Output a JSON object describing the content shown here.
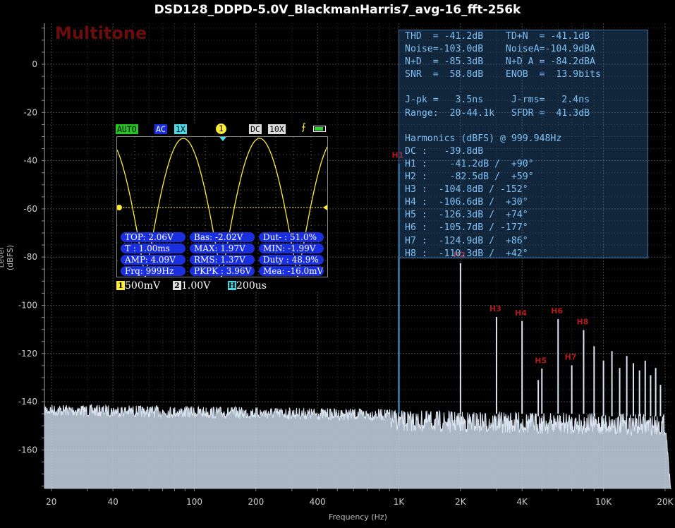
{
  "chart_data": {
    "type": "line",
    "title": "DSD128_DDPD-5.0V_BlackmanHarris7_avg-16_fft-256k",
    "xlabel": "Frequency (Hz)",
    "ylabel": "Level (dBFS)",
    "xscale": "log",
    "xlim": [
      18.5,
      21500
    ],
    "ylim": [
      -176,
      17
    ],
    "x_ticks": [
      20,
      40,
      100,
      200,
      400,
      1000,
      2000,
      4000,
      10000,
      20000
    ],
    "x_tick_labels": [
      "20",
      "40",
      "100",
      "200",
      "400",
      "1K",
      "2K",
      "4K",
      "10K",
      "20K"
    ],
    "y_ticks": [
      0,
      -20,
      -40,
      -60,
      -80,
      -100,
      -120,
      -140,
      -160
    ],
    "y_tick_labels": [
      "0",
      "-20",
      "-40",
      "-60",
      "-80",
      "-100",
      "-120",
      "-140",
      "-160"
    ],
    "grid": true,
    "noise_floor_dB": -143,
    "fundamental": {
      "freq": 1000,
      "level": -41.2
    },
    "harmonics": [
      {
        "label": "H1",
        "freq": 1000,
        "level": -41.2
      },
      {
        "label": "H2",
        "freq": 2000,
        "level": -82.5
      },
      {
        "label": "H3",
        "freq": 3000,
        "level": -104.8
      },
      {
        "label": "H4",
        "freq": 4000,
        "level": -106.6
      },
      {
        "label": "H5",
        "freq": 5000,
        "level": -126.3
      },
      {
        "label": "H6",
        "freq": 6000,
        "level": -105.7
      },
      {
        "label": "H7",
        "freq": 7000,
        "level": -124.9
      },
      {
        "label": "H8",
        "freq": 8000,
        "level": -110.3
      }
    ],
    "extra_spurs": [
      {
        "freq": 4800,
        "level": -131
      },
      {
        "freq": 9000,
        "level": -117
      },
      {
        "freq": 10000,
        "level": -123
      },
      {
        "freq": 11000,
        "level": -119
      },
      {
        "freq": 12000,
        "level": -126
      },
      {
        "freq": 13000,
        "level": -121
      },
      {
        "freq": 14000,
        "level": -124
      },
      {
        "freq": 15000,
        "level": -127
      },
      {
        "freq": 16000,
        "level": -123
      },
      {
        "freq": 17000,
        "level": -129
      },
      {
        "freq": 18000,
        "level": -126
      },
      {
        "freq": 19000,
        "level": -133
      }
    ],
    "series_color": "#dbe6f2",
    "fundamental_color": "#4aa3df",
    "harmonic_label_color": "#b3191b"
  },
  "watermark": "Multitone",
  "info": {
    "lines": [
      "THD  = -41.2dB    TD+N  = -41.1dB",
      "Noise=-103.0dB    NoiseA=-104.9dBA",
      "N+D  = -85.3dB    N+D A = -84.2dBA",
      "SNR  =  58.8dB    ENOB  =  13.9bits",
      "",
      "J-pk =   3.5ns     J-rms=   2.4ns",
      "Range:  20-44.1k   SFDR =  41.3dB",
      "",
      "Harmonics (dBFS) @ 999.948Hz",
      "DC :   -39.8dB",
      "H1 :    -41.2dB /  +90°",
      "H2 :    -82.5dB /  +59°",
      "H3 :  -104.8dB / -152°",
      "H4 :  -106.6dB /  +30°",
      "H5 :  -126.3dB /  +74°",
      "H6 :  -105.7dB / -177°",
      "H7 :  -124.9dB /  +86°",
      "H8 :  -110.3dB /  +42°"
    ]
  },
  "scope": {
    "mode": "AUTO",
    "coupling": "AC",
    "probe": "1X",
    "trigger_channel": "1",
    "dc": "DC",
    "probe2": "10X",
    "trigger_edge_icon": "rising-edge-icon",
    "battery_icon": "battery-icon",
    "measurements": [
      "TOP: 2.06V",
      "Bas: -2.02V",
      "Dut- : 51.0%",
      "T  : 1.00ms",
      "MAX: 1.97V",
      "MIN: -1.99V",
      "AMP: 4.09V",
      "RMS: 1.37V",
      "Duty : 48.9%",
      "Frq: 999Hz",
      "PKPK : 3.96V",
      "Mea: -16.0mV"
    ],
    "ch1_label": "1",
    "ch1_scale": "500mV",
    "ch2_label": "2",
    "ch2_scale": "1.00V",
    "time_label": "H",
    "time_scale": "200us",
    "colors": {
      "ch1": "#ffee33",
      "ch2": "#ffffff",
      "time": "#48d8e8",
      "auto": "#22c322"
    }
  }
}
